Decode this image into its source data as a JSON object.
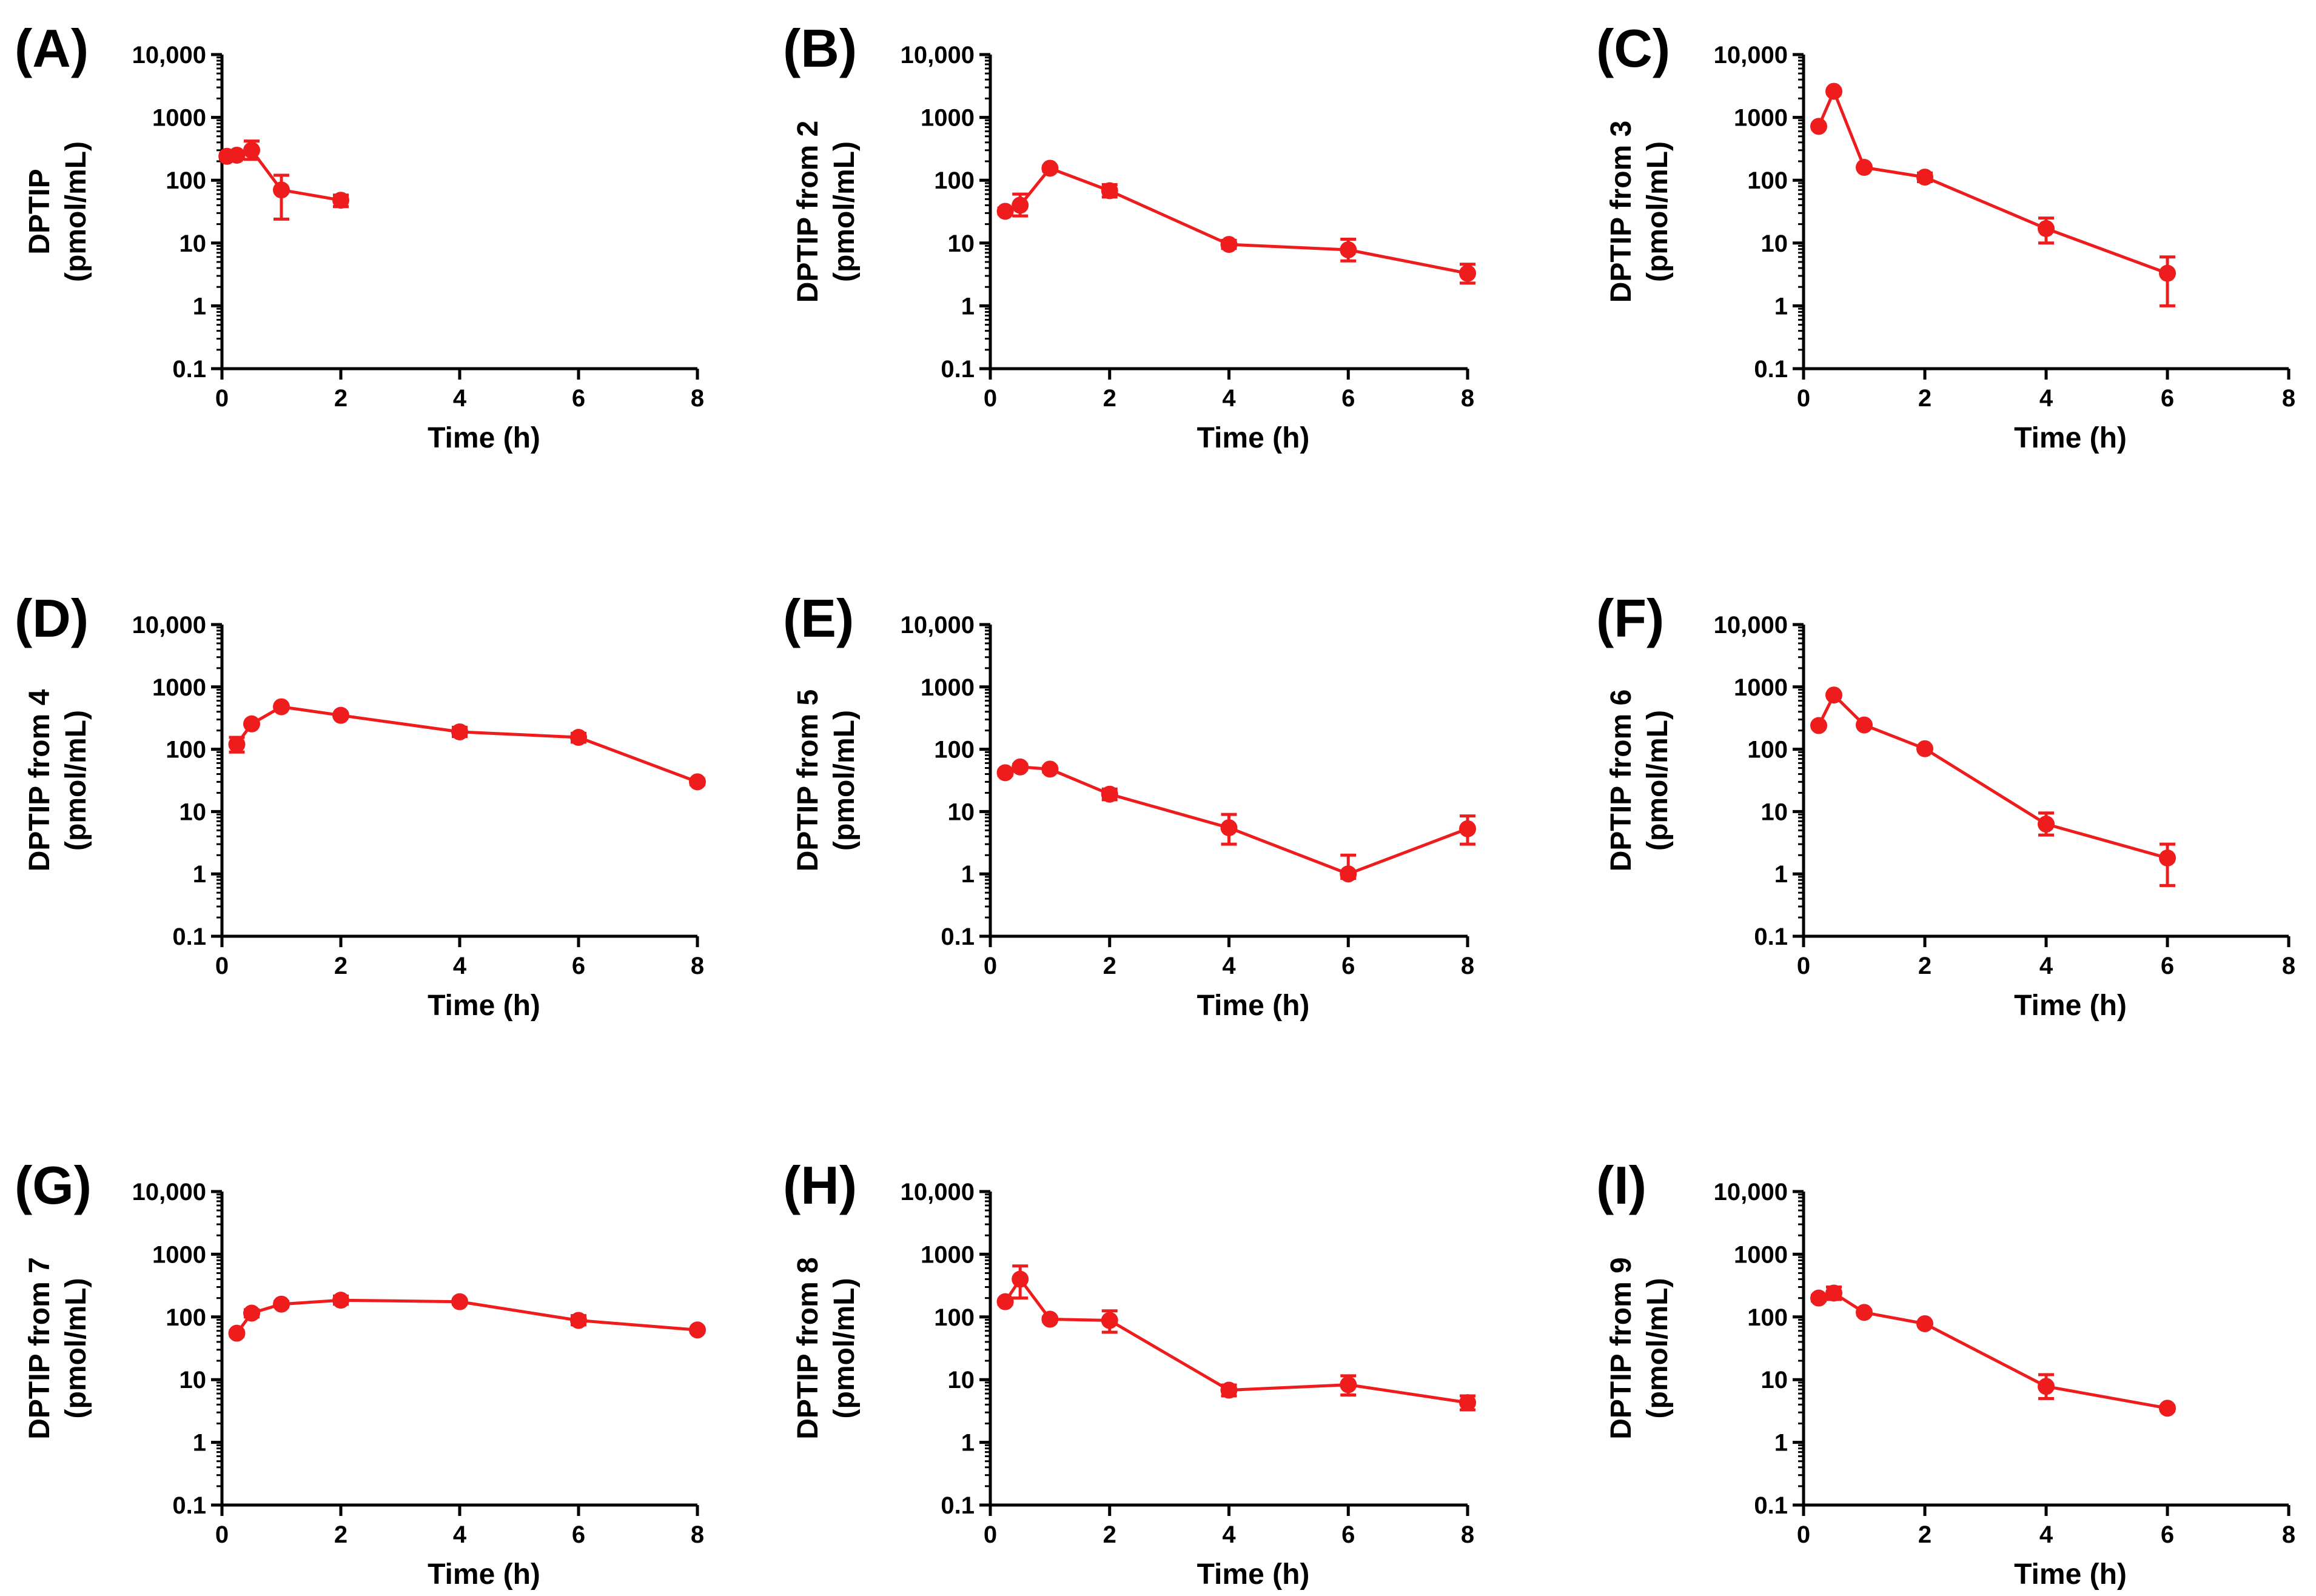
{
  "figure": {
    "series_color": "#EE1C1C",
    "axis_color": "#000000"
  },
  "chart_data": [
    {
      "type": "line",
      "panel_label": "(A)",
      "title": "",
      "xlabel": "Time (h)",
      "ylabel_line1": "DPTIP",
      "ylabel_line2": "(pmol/mL)",
      "xlim": [
        0,
        8
      ],
      "ylim": [
        0.1,
        10000
      ],
      "yscale": "log",
      "xticks": [
        0,
        2,
        4,
        6,
        8
      ],
      "xtick_labels": [
        "0",
        "2",
        "4",
        "6",
        "8"
      ],
      "yticks": [
        0.1,
        1,
        10,
        100,
        1000,
        10000
      ],
      "ytick_labels": [
        "0.1",
        "1",
        "10",
        "100",
        "1000",
        "10,000"
      ],
      "series": [
        {
          "name": "DPTIP",
          "x": [
            0.083,
            0.25,
            0.5,
            1,
            2
          ],
          "y": [
            240,
            250,
            300,
            70,
            48
          ],
          "err_low": [
            215,
            230,
            215,
            24,
            38
          ],
          "err_high": [
            265,
            270,
            420,
            120,
            58
          ]
        }
      ]
    },
    {
      "type": "line",
      "panel_label": "(B)",
      "title": "",
      "xlabel": "Time (h)",
      "ylabel_line1": "DPTIP from 2",
      "ylabel_line2": "(pmol/mL)",
      "xlim": [
        0,
        8
      ],
      "ylim": [
        0.1,
        10000
      ],
      "yscale": "log",
      "xticks": [
        0,
        2,
        4,
        6,
        8
      ],
      "xtick_labels": [
        "0",
        "2",
        "4",
        "6",
        "8"
      ],
      "yticks": [
        0.1,
        1,
        10,
        100,
        1000,
        10000
      ],
      "ytick_labels": [
        "0.1",
        "1",
        "10",
        "100",
        "1000",
        "10,000"
      ],
      "series": [
        {
          "name": "DPTIP from 2",
          "x": [
            0.25,
            0.5,
            1,
            2,
            4,
            6,
            8
          ],
          "y": [
            32,
            40,
            155,
            68,
            9.5,
            7.8,
            3.3
          ],
          "err_low": [
            29,
            27,
            140,
            54,
            8.2,
            5.2,
            2.3
          ],
          "err_high": [
            36,
            60,
            168,
            85,
            11,
            11.5,
            4.6
          ]
        }
      ]
    },
    {
      "type": "line",
      "panel_label": "(C)",
      "title": "",
      "xlabel": "Time (h)",
      "ylabel_line1": "DPTIP from  3",
      "ylabel_line2": "(pmol/mL)",
      "xlim": [
        0,
        8
      ],
      "ylim": [
        0.1,
        10000
      ],
      "yscale": "log",
      "xticks": [
        0,
        2,
        4,
        6,
        8
      ],
      "xtick_labels": [
        "0",
        "2",
        "4",
        "6",
        "8"
      ],
      "yticks": [
        0.1,
        1,
        10,
        100,
        1000,
        10000
      ],
      "ytick_labels": [
        "0.1",
        "1",
        "10",
        "100",
        "1000",
        "10,000"
      ],
      "series": [
        {
          "name": "DPTIP from 3",
          "x": [
            0.25,
            0.5,
            1,
            2,
            4,
            6
          ],
          "y": [
            720,
            2600,
            160,
            112,
            17,
            3.3
          ],
          "err_low": [
            690,
            2400,
            150,
            95,
            10,
            1.0
          ],
          "err_high": [
            750,
            2800,
            170,
            130,
            25,
            6.0
          ]
        }
      ]
    },
    {
      "type": "line",
      "panel_label": "(D)",
      "title": "",
      "xlabel": "Time (h)",
      "ylabel_line1": "DPTIP from 4",
      "ylabel_line2": "(pmol/mL)",
      "xlim": [
        0,
        8
      ],
      "ylim": [
        0.1,
        10000
      ],
      "yscale": "log",
      "xticks": [
        0,
        2,
        4,
        6,
        8
      ],
      "xtick_labels": [
        "0",
        "2",
        "4",
        "6",
        "8"
      ],
      "yticks": [
        0.1,
        1,
        10,
        100,
        1000,
        10000
      ],
      "ytick_labels": [
        "0.1",
        "1",
        "10",
        "100",
        "1000",
        "10,000"
      ],
      "series": [
        {
          "name": "DPTIP from 4",
          "x": [
            0.25,
            0.5,
            1,
            2,
            4,
            6,
            8
          ],
          "y": [
            120,
            255,
            480,
            350,
            190,
            155,
            30
          ],
          "err_low": [
            90,
            240,
            455,
            330,
            160,
            130,
            27
          ],
          "err_high": [
            155,
            270,
            505,
            370,
            225,
            180,
            33
          ]
        }
      ]
    },
    {
      "type": "line",
      "panel_label": "(E)",
      "title": "",
      "xlabel": "Time (h)",
      "ylabel_line1": "DPTIP from  5",
      "ylabel_line2": "(pmol/mL)",
      "xlim": [
        0,
        8
      ],
      "ylim": [
        0.1,
        10000
      ],
      "yscale": "log",
      "xticks": [
        0,
        2,
        4,
        6,
        8
      ],
      "xtick_labels": [
        "0",
        "2",
        "4",
        "6",
        "8"
      ],
      "yticks": [
        0.1,
        1,
        10,
        100,
        1000,
        10000
      ],
      "ytick_labels": [
        "0.1",
        "1",
        "10",
        "100",
        "1000",
        "10,000"
      ],
      "series": [
        {
          "name": "DPTIP from 5",
          "x": [
            0.25,
            0.5,
            1,
            2,
            4,
            6,
            8
          ],
          "y": [
            42,
            52,
            48,
            19,
            5.5,
            1.0,
            5.3
          ],
          "err_low": [
            38,
            47,
            43,
            15.5,
            3.0,
            0.85,
            3.0
          ],
          "err_high": [
            46,
            57,
            53,
            23,
            9.0,
            2.0,
            8.5
          ]
        }
      ]
    },
    {
      "type": "line",
      "panel_label": "(F)",
      "title": "",
      "xlabel": "Time (h)",
      "ylabel_line1": "DPTIP from  6",
      "ylabel_line2": "(pmol/mL)",
      "xlim": [
        0,
        8
      ],
      "ylim": [
        0.1,
        10000
      ],
      "yscale": "log",
      "xticks": [
        0,
        2,
        4,
        6,
        8
      ],
      "xtick_labels": [
        "0",
        "2",
        "4",
        "6",
        "8"
      ],
      "yticks": [
        0.1,
        1,
        10,
        100,
        1000,
        10000
      ],
      "ytick_labels": [
        "0.1",
        "1",
        "10",
        "100",
        "1000",
        "10,000"
      ],
      "series": [
        {
          "name": "DPTIP from 6",
          "x": [
            0.25,
            0.5,
            1,
            2,
            4,
            6
          ],
          "y": [
            240,
            740,
            245,
            102,
            6.3,
            1.8
          ],
          "err_low": [
            225,
            700,
            230,
            95,
            4.2,
            0.65
          ],
          "err_high": [
            255,
            780,
            260,
            110,
            9.5,
            3.0
          ]
        }
      ]
    },
    {
      "type": "line",
      "panel_label": "(G)",
      "title": "",
      "xlabel": "Time (h)",
      "ylabel_line1": "DPTIP from  7",
      "ylabel_line2": "(pmol/mL)",
      "xlim": [
        0,
        8
      ],
      "ylim": [
        0.1,
        10000
      ],
      "yscale": "log",
      "xticks": [
        0,
        2,
        4,
        6,
        8
      ],
      "xtick_labels": [
        "0",
        "2",
        "4",
        "6",
        "8"
      ],
      "yticks": [
        0.1,
        1,
        10,
        100,
        1000,
        10000
      ],
      "ytick_labels": [
        "0.1",
        "1",
        "10",
        "100",
        "1000",
        "10,000"
      ],
      "series": [
        {
          "name": "DPTIP from 7",
          "x": [
            0.25,
            0.5,
            1,
            2,
            4,
            6,
            8
          ],
          "y": [
            55,
            115,
            160,
            185,
            175,
            88,
            62
          ],
          "err_low": [
            50,
            100,
            145,
            160,
            160,
            75,
            57
          ],
          "err_high": [
            60,
            130,
            175,
            215,
            190,
            105,
            67
          ]
        }
      ]
    },
    {
      "type": "line",
      "panel_label": "(H)",
      "title": "",
      "xlabel": "Time (h)",
      "ylabel_line1": "DPTIP from  8",
      "ylabel_line2": "(pmol/mL)",
      "xlim": [
        0,
        8
      ],
      "ylim": [
        0.1,
        10000
      ],
      "yscale": "log",
      "xticks": [
        0,
        2,
        4,
        6,
        8
      ],
      "xtick_labels": [
        "0",
        "2",
        "4",
        "6",
        "8"
      ],
      "yticks": [
        0.1,
        1,
        10,
        100,
        1000,
        10000
      ],
      "ytick_labels": [
        "0.1",
        "1",
        "10",
        "100",
        "1000",
        "10,000"
      ],
      "series": [
        {
          "name": "DPTIP from 8",
          "x": [
            0.25,
            0.5,
            1,
            2,
            4,
            6,
            8
          ],
          "y": [
            175,
            400,
            92,
            88,
            6.8,
            8.3,
            4.3
          ],
          "err_low": [
            160,
            200,
            85,
            57,
            5.5,
            5.7,
            3.3
          ],
          "err_high": [
            190,
            650,
            100,
            125,
            8.2,
            11.5,
            5.5
          ]
        }
      ]
    },
    {
      "type": "line",
      "panel_label": "(I)",
      "title": "",
      "xlabel": "Time (h)",
      "ylabel_line1": "DPTIP from  9",
      "ylabel_line2": "(pmol/mL)",
      "xlim": [
        0,
        8
      ],
      "ylim": [
        0.1,
        10000
      ],
      "yscale": "log",
      "xticks": [
        0,
        2,
        4,
        6,
        8
      ],
      "xtick_labels": [
        "0",
        "2",
        "4",
        "6",
        "8"
      ],
      "yticks": [
        0.1,
        1,
        10,
        100,
        1000,
        10000
      ],
      "ytick_labels": [
        "0.1",
        "1",
        "10",
        "100",
        "1000",
        "10,000"
      ],
      "series": [
        {
          "name": "DPTIP from 9",
          "x": [
            0.25,
            0.5,
            1,
            2,
            4,
            6
          ],
          "y": [
            200,
            240,
            118,
            78,
            7.8,
            3.5
          ],
          "err_low": [
            180,
            190,
            108,
            72,
            5.0,
            3.2
          ],
          "err_high": [
            220,
            300,
            128,
            84,
            12,
            3.8
          ]
        }
      ]
    }
  ]
}
